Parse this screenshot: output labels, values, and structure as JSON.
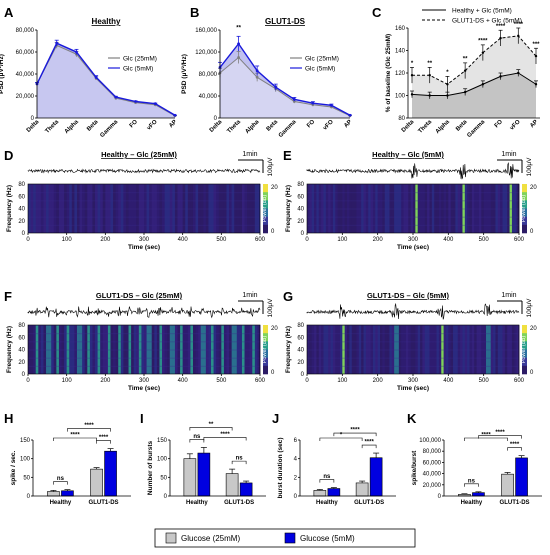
{
  "panels": {
    "A": "A",
    "B": "B",
    "C": "C",
    "D": "D",
    "E": "E",
    "F": "F",
    "G": "G",
    "H": "H",
    "I": "I",
    "J": "J",
    "K": "K"
  },
  "chart_data": [
    {
      "id": "A",
      "type": "area",
      "title": "Healthy",
      "ylabel": "PSD (μV²/Hz)",
      "categories": [
        "Delta",
        "Theta",
        "Alpha",
        "Beta",
        "Gamma",
        "FO",
        "vFO",
        "AP"
      ],
      "ylim": [
        0,
        80000
      ],
      "yticks": [
        "0",
        "20,000",
        "40,000",
        "60,000",
        "80,000"
      ],
      "tick_values": [
        0,
        20000,
        40000,
        60000,
        80000
      ],
      "series": [
        {
          "name": "Glc (25mM)",
          "color": "#808080",
          "values": [
            31000,
            66000,
            58000,
            36000,
            18000,
            14000,
            12000,
            2000
          ]
        },
        {
          "name": "Glc (5mM)",
          "color": "#1a1adb",
          "values": [
            31000,
            68000,
            60000,
            37000,
            19000,
            15000,
            13000,
            2500
          ]
        }
      ]
    },
    {
      "id": "B",
      "type": "area",
      "title": "GLUT1-DS",
      "ylabel": "PSD (μV²/Hz)",
      "categories": [
        "Delta",
        "Theta",
        "Alpha",
        "Beta",
        "Gamma",
        "FO",
        "vFO",
        "AP"
      ],
      "ylim": [
        0,
        160000
      ],
      "yticks": [
        "0",
        "40,000",
        "80,000",
        "120,000",
        "160,000"
      ],
      "tick_values": [
        0,
        40000,
        80000,
        120000,
        160000
      ],
      "annotation": "**",
      "series": [
        {
          "name": "Glc (25mM)",
          "color": "#808080",
          "values": [
            82000,
            110000,
            74000,
            53000,
            30000,
            24000,
            20000,
            4000
          ]
        },
        {
          "name": "Glc (5mM)",
          "color": "#1a1adb",
          "values": [
            92000,
            135000,
            86000,
            56000,
            34000,
            27000,
            23000,
            5000
          ]
        }
      ]
    },
    {
      "id": "C",
      "type": "line",
      "ylabel": "% of baseline (Glc 25mM)",
      "categories": [
        "Delta",
        "Theta",
        "Alpha",
        "Beta",
        "Gamma",
        "FO",
        "vFO",
        "AP"
      ],
      "ylim": [
        80,
        160
      ],
      "yticks": [
        "80",
        "100",
        "120",
        "140",
        "160"
      ],
      "tick_values": [
        80,
        100,
        120,
        140,
        160
      ],
      "stars": [
        "*",
        "**",
        "*",
        "**",
        "****",
        "****",
        "****",
        "***"
      ],
      "series": [
        {
          "name": "Healthy + Glc (5mM)",
          "values": [
            101,
            100,
            100,
            103,
            110,
            117,
            120,
            110
          ]
        },
        {
          "name": "GLUT1-DS + Glc (5mM)",
          "values": [
            118,
            118,
            110,
            122,
            138,
            151,
            153,
            135
          ]
        }
      ]
    },
    {
      "id": "D",
      "type": "heatmap",
      "title": "Healthy – Glc (25mM)",
      "scalebar_time": "1min",
      "scalebar_volt": "100μV",
      "xlabel": "Time (sec)",
      "ylabel": "Frequency (Hz)",
      "xticks": [
        "0",
        "100",
        "200",
        "300",
        "400",
        "500",
        "600"
      ],
      "yticks": [
        "0",
        "20",
        "40",
        "60",
        "80"
      ],
      "colorbar_label": "Power (dB)",
      "colorbar_ticks": [
        "0",
        "20"
      ],
      "bursts_sec": []
    },
    {
      "id": "E",
      "type": "heatmap",
      "title": "Healthy – Glc (5mM)",
      "scalebar_time": "1min",
      "scalebar_volt": "100μV",
      "xlabel": "Time (sec)",
      "ylabel": "Frequency (Hz)",
      "xticks": [
        "0",
        "100",
        "200",
        "300",
        "400",
        "500",
        "600"
      ],
      "yticks": [
        "0",
        "20",
        "40",
        "60",
        "80"
      ],
      "colorbar_label": "Power (dB)",
      "colorbar_ticks": [
        "0",
        "20"
      ],
      "bursts_sec": [
        305,
        440,
        575
      ]
    },
    {
      "id": "F",
      "type": "heatmap",
      "title": "GLUT1-DS – Glc (25mM)",
      "scalebar_time": "1min",
      "scalebar_volt": "100μV",
      "xlabel": "Time (sec)",
      "ylabel": "Frequency (Hz)",
      "xticks": [
        "0",
        "100",
        "200",
        "300",
        "400",
        "500",
        "600"
      ],
      "yticks": [
        "0",
        "20",
        "40",
        "60",
        "80"
      ],
      "colorbar_label": "Power (dB)",
      "colorbar_ticks": [
        "0",
        "20"
      ],
      "bursts_sec": [
        20,
        50,
        75,
        100,
        130,
        155,
        180,
        205,
        235,
        260,
        285,
        310,
        340,
        370,
        395,
        420,
        450,
        475,
        500,
        530,
        555,
        580,
        600
      ]
    },
    {
      "id": "G",
      "type": "heatmap",
      "title": "GLUT1-DS – Glc (5mM)",
      "scalebar_time": "1min",
      "scalebar_volt": "100μV",
      "xlabel": "Time (sec)",
      "ylabel": "Frequency (Hz)",
      "xticks": [
        "0",
        "100",
        "200",
        "300",
        "400",
        "500",
        "600"
      ],
      "yticks": [
        "0",
        "20",
        "40",
        "60",
        "80"
      ],
      "colorbar_label": "Power (dB)",
      "colorbar_ticks": [
        "0",
        "20"
      ],
      "bursts_sec": [
        100,
        250,
        380,
        510
      ]
    },
    {
      "id": "H",
      "type": "bar",
      "ylabel": "spike / sec.",
      "categories": [
        "Healthy",
        "GLUT1-DS"
      ],
      "ylim": [
        0,
        150
      ],
      "yticks": [
        "0",
        "50",
        "100",
        "150"
      ],
      "tick_values": [
        0,
        50,
        100,
        150
      ],
      "series": [
        {
          "name": "Glucose (25mM)",
          "values": [
            12,
            72
          ]
        },
        {
          "name": "Glucose (5mM)",
          "values": [
            14,
            120
          ]
        }
      ],
      "errors": [
        [
          3,
          4
        ],
        [
          3,
          7
        ]
      ],
      "brackets": [
        {
          "label": "ns",
          "from": [
            0,
            0
          ],
          "to": [
            0,
            1
          ]
        },
        {
          "label": "****",
          "from": [
            0,
            0
          ],
          "to": [
            1,
            0
          ]
        },
        {
          "label": "****",
          "from": [
            1,
            0
          ],
          "to": [
            1,
            1
          ]
        },
        {
          "label": "****",
          "from": [
            0,
            1
          ],
          "to": [
            1,
            1
          ]
        }
      ]
    },
    {
      "id": "I",
      "type": "bar",
      "ylabel": "Number of bursts",
      "categories": [
        "Healthy",
        "GLUT1-DS"
      ],
      "ylim": [
        0,
        150
      ],
      "yticks": [
        "0",
        "50",
        "100",
        "150"
      ],
      "tick_values": [
        0,
        50,
        100,
        150
      ],
      "series": [
        {
          "name": "Glucose (25mM)",
          "values": [
            100,
            60
          ]
        },
        {
          "name": "Glucose (5mM)",
          "values": [
            115,
            35
          ]
        }
      ],
      "errors": [
        [
          13,
          12
        ],
        [
          15,
          5
        ]
      ],
      "brackets": [
        {
          "label": "ns",
          "from": [
            0,
            0
          ],
          "to": [
            0,
            1
          ]
        },
        {
          "label": "ns",
          "from": [
            1,
            0
          ],
          "to": [
            1,
            1
          ]
        },
        {
          "label": "****",
          "from": [
            0,
            1
          ],
          "to": [
            1,
            1
          ]
        },
        {
          "label": "**",
          "from": [
            0,
            0
          ],
          "to": [
            1,
            0
          ]
        }
      ]
    },
    {
      "id": "J",
      "type": "bar",
      "ylabel": "burst duration (sec)",
      "categories": [
        "Healthy",
        "GLUT1-DS"
      ],
      "ylim": [
        0,
        6
      ],
      "yticks": [
        "0",
        "2",
        "4",
        "6"
      ],
      "tick_values": [
        0,
        2,
        4,
        6
      ],
      "series": [
        {
          "name": "Glucose (25mM)",
          "values": [
            0.6,
            1.4
          ]
        },
        {
          "name": "Glucose (5mM)",
          "values": [
            0.8,
            4.1
          ]
        }
      ],
      "errors": [
        [
          0.1,
          0.2
        ],
        [
          0.1,
          0.5
        ]
      ],
      "brackets": [
        {
          "label": "ns",
          "from": [
            0,
            0
          ],
          "to": [
            0,
            1
          ]
        },
        {
          "label": "*",
          "from": [
            0,
            0
          ],
          "to": [
            1,
            0
          ]
        },
        {
          "label": "****",
          "from": [
            1,
            0
          ],
          "to": [
            1,
            1
          ]
        },
        {
          "label": "****",
          "from": [
            0,
            1
          ],
          "to": [
            1,
            1
          ]
        }
      ]
    },
    {
      "id": "K",
      "type": "bar",
      "ylabel": "spike/burst",
      "categories": [
        "Healthy",
        "GLUT1-DS"
      ],
      "ylim": [
        0,
        100000
      ],
      "yticks": [
        "0",
        "20,000",
        "40,000",
        "60,000",
        "80,000",
        "100,000"
      ],
      "tick_values": [
        0,
        20000,
        40000,
        60000,
        80000,
        100000
      ],
      "series": [
        {
          "name": "Glucose (25mM)",
          "values": [
            3000,
            39000
          ]
        },
        {
          "name": "Glucose (5mM)",
          "values": [
            6000,
            68000
          ]
        }
      ],
      "errors": [
        [
          1000,
          3000
        ],
        [
          1500,
          4000
        ]
      ],
      "brackets": [
        {
          "label": "ns",
          "from": [
            0,
            0
          ],
          "to": [
            0,
            1
          ]
        },
        {
          "label": "****",
          "from": [
            0,
            0
          ],
          "to": [
            1,
            0
          ]
        },
        {
          "label": "****",
          "from": [
            1,
            0
          ],
          "to": [
            1,
            1
          ]
        },
        {
          "label": "****",
          "from": [
            0,
            1
          ],
          "to": [
            1,
            1
          ]
        }
      ]
    }
  ],
  "legend": {
    "items": [
      {
        "label": "Glucose (25mM)",
        "color": "#c8c8c8"
      },
      {
        "label": "Glucose (5mM)",
        "color": "#0000e0"
      }
    ]
  },
  "colors": {
    "blue": "#1a1adb",
    "gray": "#808080",
    "bar_gray": "#c8c8c8",
    "bar_blue": "#0000e0"
  }
}
